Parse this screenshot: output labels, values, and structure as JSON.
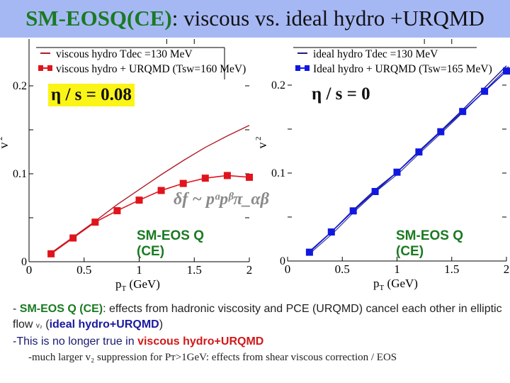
{
  "title": {
    "part1": "SM-EOSQ(CE)",
    "part2": ": viscous vs. ideal hydro +URQMD",
    "bg_color": "#a6b8f4"
  },
  "left_panel": {
    "eta_label": "η / s = 0.08",
    "eos_label_line1": "SM-EOS Q",
    "eos_label_line2": "(CE)",
    "overlay_formula": "δf ~ pᵅpᵝπ_αβ",
    "legend": [
      "viscous hydro Tdec =130 MeV",
      "viscous hydro + URQMD (Tsw=160 MeV)"
    ],
    "ylabel": "v2",
    "xlabel": "pT (GeV)"
  },
  "right_panel": {
    "eta_label": "η / s = 0",
    "eos_label_line1": "SM-EOS Q",
    "eos_label_line2": "(CE)",
    "legend": [
      "ideal hydro Tdec =130 MeV",
      "Ideal hydro + URQMD (Tsw=165 MeV)"
    ],
    "ylabel": "v2",
    "xlabel": "pT (GeV)"
  },
  "axis": {
    "xticks": [
      "0",
      "0.5",
      "1",
      "1.5",
      "2"
    ],
    "yticks": [
      "0",
      "0.1",
      "0.2"
    ]
  },
  "bullets": {
    "b1_green": "SM-EOS Q (CE)",
    "b1_text": ": effects from hadronic viscosity and PCE (URQMD) cancel each other  in elliptic flow ",
    "b1_v2": "v₂",
    "b1_paren_open": "  (",
    "b1_blue": "ideal hydro+URQMD",
    "b1_paren_close": ")",
    "b2_text": "-This is no longer true in ",
    "b2_red": "viscous hydro+URQMD",
    "b3_text": "-much larger v₂ suppression  for Pт>1GeV:   effects from shear viscous correction / EOS"
  },
  "chart_data": [
    {
      "type": "line",
      "title": "η/s = 0.08 (viscous)",
      "xlabel": "pT (GeV)",
      "ylabel": "v2",
      "xlim": [
        0,
        2
      ],
      "ylim": [
        0,
        0.24
      ],
      "legend_position": "top-left",
      "series": [
        {
          "name": "viscous hydro Tdec =130 MeV",
          "color": "#b01c28",
          "x": [
            0.2,
            0.4,
            0.6,
            0.8,
            1.0,
            1.2,
            1.4,
            1.6,
            1.8,
            2.0
          ],
          "y": [
            0.01,
            0.028,
            0.046,
            0.065,
            0.082,
            0.099,
            0.115,
            0.13,
            0.143,
            0.155
          ]
        },
        {
          "name": "viscous hydro + URQMD (Tsw=160 MeV)",
          "color": "#e0141c",
          "marker": "square",
          "x": [
            0.2,
            0.4,
            0.6,
            0.8,
            1.0,
            1.2,
            1.4,
            1.6,
            1.8,
            2.0
          ],
          "y": [
            0.009,
            0.027,
            0.045,
            0.058,
            0.07,
            0.081,
            0.089,
            0.095,
            0.098,
            0.096
          ]
        }
      ]
    },
    {
      "type": "line",
      "title": "η/s = 0 (ideal)",
      "xlabel": "pT (GeV)",
      "ylabel": "v2",
      "xlim": [
        0,
        2
      ],
      "ylim": [
        0,
        0.24
      ],
      "legend_position": "top-left",
      "series": [
        {
          "name": "ideal hydro Tdec =130 MeV",
          "color": "#1c1c80",
          "x": [
            0.2,
            0.4,
            0.6,
            0.8,
            1.0,
            1.2,
            1.4,
            1.6,
            1.8,
            2.0
          ],
          "y": [
            0.011,
            0.033,
            0.058,
            0.081,
            0.101,
            0.125,
            0.148,
            0.172,
            0.197,
            0.222
          ]
        },
        {
          "name": "Ideal hydro + URQMD (Tsw=165 MeV)",
          "color": "#1018e0",
          "marker": "square",
          "x": [
            0.2,
            0.4,
            0.6,
            0.8,
            1.0,
            1.2,
            1.4,
            1.6,
            1.8,
            2.0
          ],
          "y": [
            0.01,
            0.033,
            0.057,
            0.079,
            0.101,
            0.124,
            0.147,
            0.17,
            0.193,
            0.216
          ]
        }
      ]
    }
  ]
}
